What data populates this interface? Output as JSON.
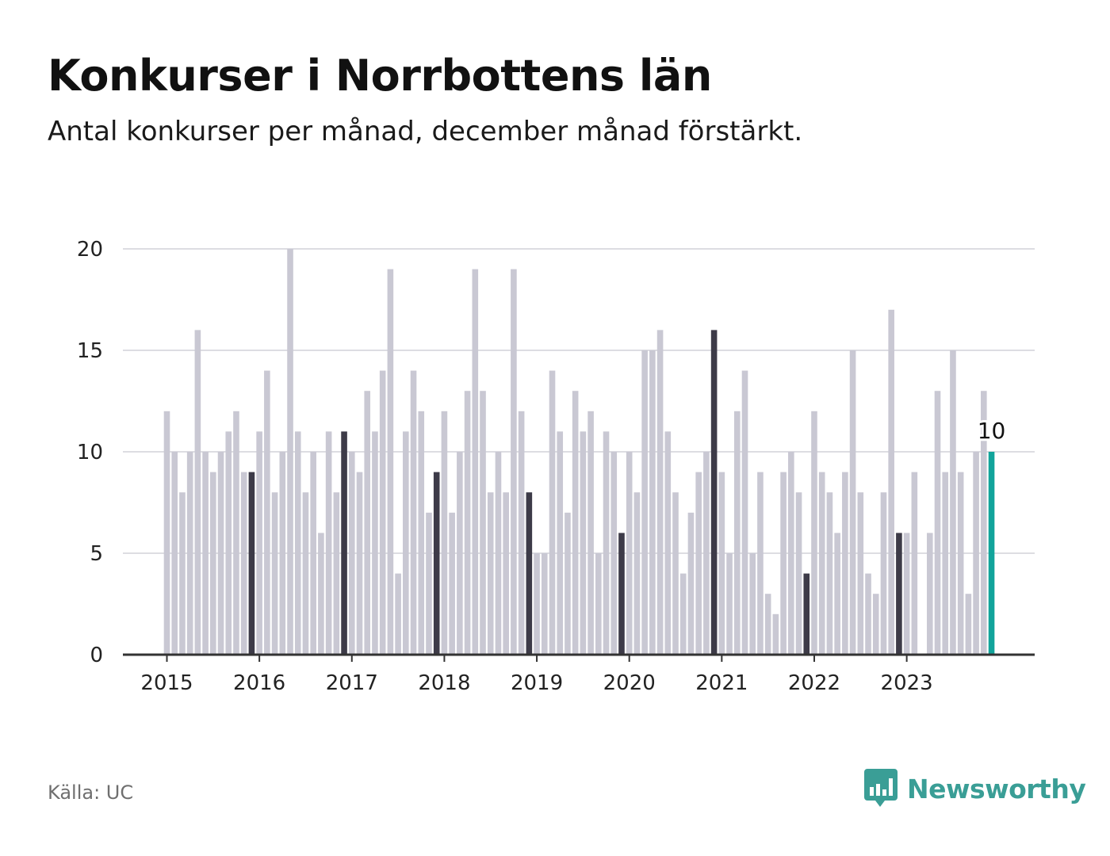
{
  "header": {
    "title": "Konkurser i Norrbottens län",
    "subtitle": "Antal konkurser per månad, december månad förstärkt."
  },
  "footer": {
    "source": "Källa: UC",
    "brand_name": "Newsworthy"
  },
  "colors": {
    "bar_default": "#c9c8d3",
    "bar_december": "#3d3b48",
    "bar_latest": "#12a49b",
    "grid": "#dddde2",
    "axis": "#333333",
    "brand": "#3a9e96"
  },
  "chart_data": {
    "type": "bar",
    "x_tick_labels": [
      "2015",
      "2016",
      "2017",
      "2018",
      "2019",
      "2020",
      "2021",
      "2022",
      "2023"
    ],
    "y_ticks": [
      0,
      5,
      10,
      15,
      20
    ],
    "ylim": [
      0,
      20
    ],
    "grid": true,
    "highlight": "december",
    "latest_label": "10",
    "series": [
      {
        "values": [
          12,
          10,
          8,
          10,
          16,
          10,
          9,
          10,
          11,
          12,
          9,
          9,
          11,
          14,
          8,
          10,
          20,
          11,
          8,
          10,
          6,
          11,
          8,
          11,
          10,
          9,
          13,
          11,
          14,
          19,
          4,
          11,
          14,
          12,
          7,
          9,
          12,
          7,
          10,
          13,
          19,
          13,
          8,
          10,
          8,
          19,
          12,
          8,
          5,
          5,
          14,
          11,
          7,
          13,
          11,
          12,
          5,
          11,
          10,
          6,
          10,
          8,
          15,
          15,
          16,
          11,
          8,
          4,
          7,
          9,
          10,
          16,
          9,
          5,
          12,
          14,
          5,
          9,
          3,
          2,
          9,
          10,
          8,
          4,
          12,
          9,
          8,
          6,
          9,
          15,
          8,
          4,
          3,
          8,
          17,
          6,
          6,
          9,
          0,
          6,
          13,
          9,
          15,
          9,
          3,
          10,
          13,
          10
        ]
      }
    ]
  }
}
